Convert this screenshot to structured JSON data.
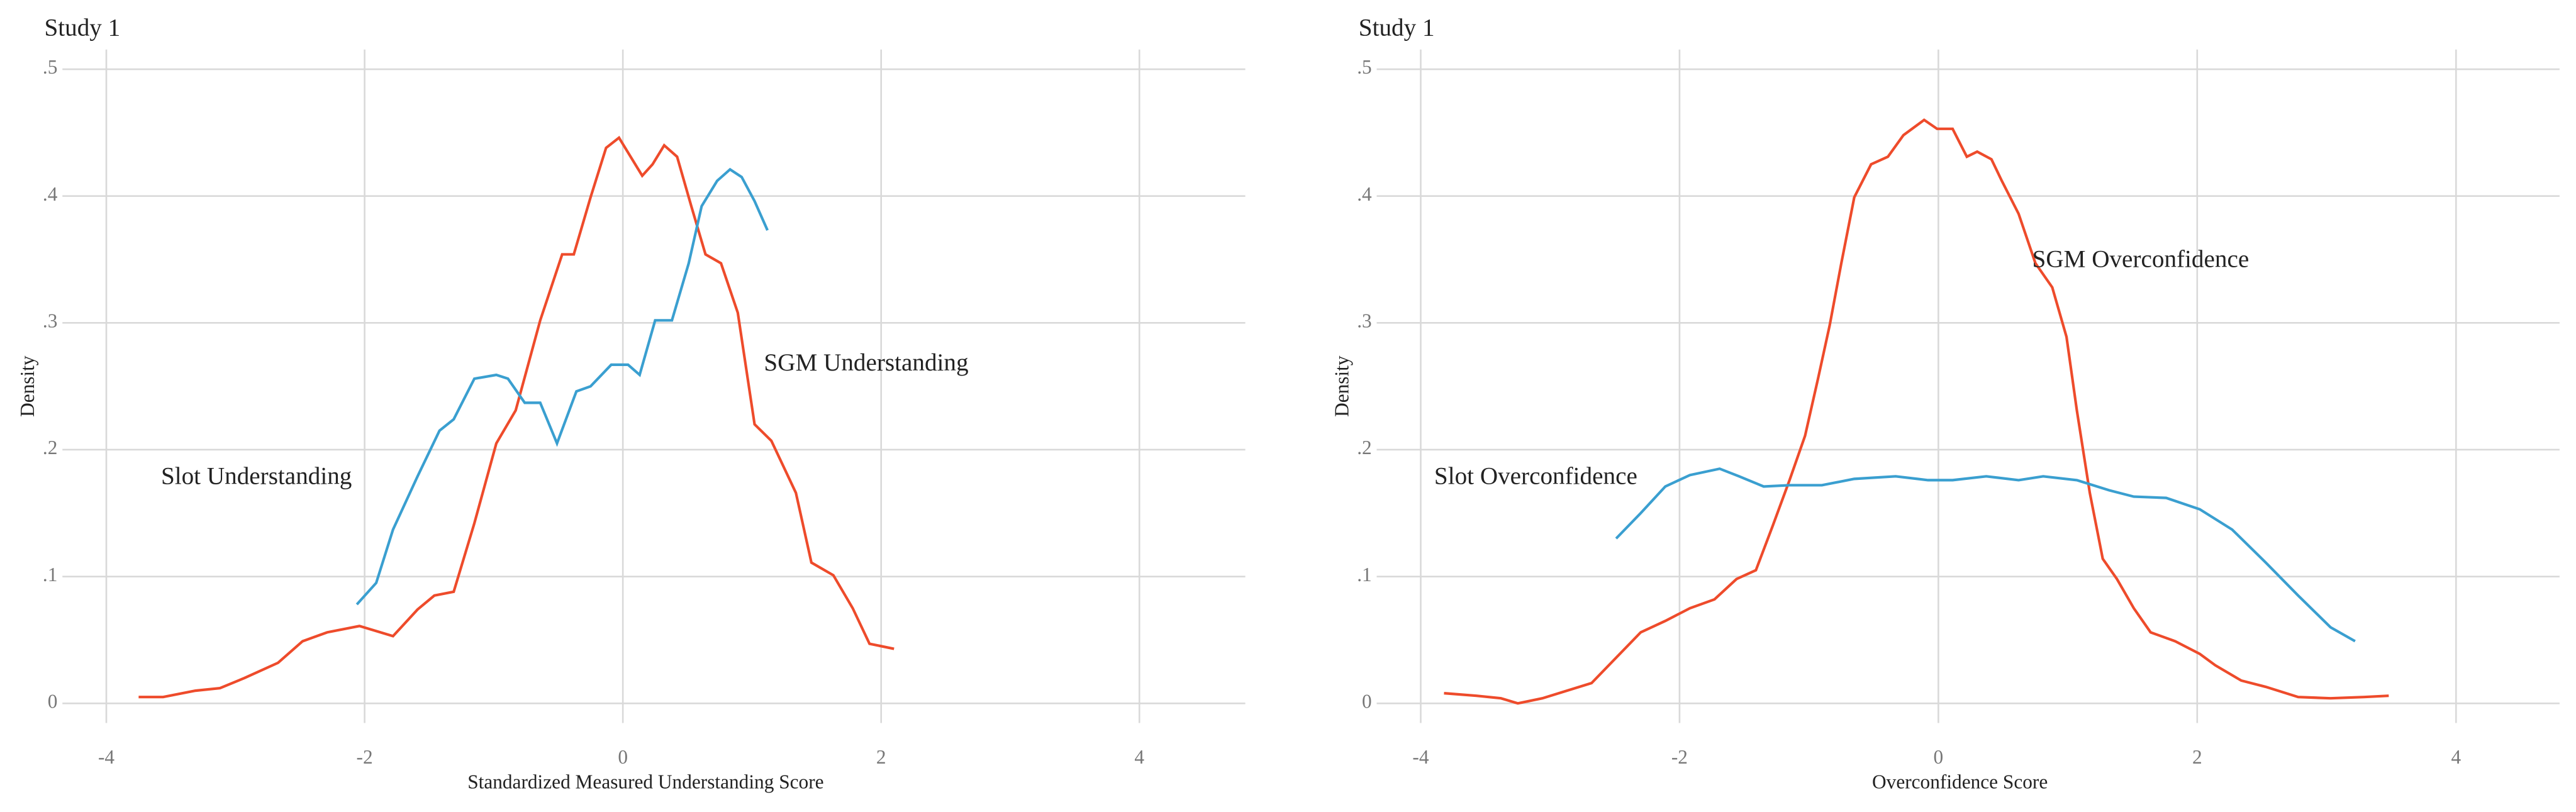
{
  "chart_data": [
    {
      "type": "line",
      "title": "Study 1",
      "x_label": "Standardized Measured Understanding Score",
      "y_label": "Density",
      "xlim": [
        -4.34,
        4.82
      ],
      "ylim": [
        -0.0155,
        0.5155
      ],
      "grid": true,
      "legend": false,
      "xticks": [
        -4,
        -2,
        0,
        2,
        4
      ],
      "yticks": [
        0,
        {
          "value": 0.1,
          "label": ".1"
        },
        {
          "value": 0.2,
          "label": ".2"
        },
        {
          "value": 0.3,
          "label": ".3"
        },
        {
          "value": 0.4,
          "label": ".4"
        },
        {
          "value": 0.5,
          "label": ".5"
        }
      ],
      "series": [
        {
          "name": "SGM Understanding",
          "color": "#ee4b2b",
          "x": [
            -3.75,
            -3.56,
            -3.31,
            -3.12,
            -2.93,
            -2.67,
            -2.48,
            -2.29,
            -2.04,
            -1.78,
            -1.59,
            -1.46,
            -1.31,
            -1.15,
            -0.98,
            -0.83,
            -0.64,
            -0.47,
            -0.38,
            -0.25,
            -0.13,
            -0.03,
            0.06,
            0.15,
            0.23,
            0.32,
            0.42,
            0.53,
            0.64,
            0.76,
            0.89,
            1.02,
            1.15,
            1.34,
            1.46,
            1.63,
            1.78,
            1.91,
            2.1
          ],
          "values": [
            0.005,
            0.005,
            0.01,
            0.012,
            0.02,
            0.032,
            0.049,
            0.056,
            0.061,
            0.053,
            0.074,
            0.085,
            0.088,
            0.142,
            0.205,
            0.231,
            0.302,
            0.354,
            0.354,
            0.399,
            0.438,
            0.446,
            0.431,
            0.416,
            0.425,
            0.44,
            0.431,
            0.392,
            0.354,
            0.347,
            0.308,
            0.22,
            0.207,
            0.166,
            0.111,
            0.101,
            0.075,
            0.047,
            0.043
          ]
        },
        {
          "name": "Slot Understanding",
          "color": "#3a9fd0",
          "x": [
            -2.06,
            -1.91,
            -1.78,
            -1.59,
            -1.42,
            -1.31,
            -1.15,
            -0.98,
            -0.89,
            -0.76,
            -0.64,
            -0.51,
            -0.36,
            -0.25,
            -0.09,
            0.04,
            0.13,
            0.25,
            0.38,
            0.51,
            0.61,
            0.73,
            0.83,
            0.92,
            1.02,
            1.12
          ],
          "values": [
            0.078,
            0.095,
            0.137,
            0.179,
            0.215,
            0.224,
            0.256,
            0.259,
            0.256,
            0.237,
            0.237,
            0.205,
            0.246,
            0.25,
            0.267,
            0.267,
            0.259,
            0.302,
            0.302,
            0.347,
            0.392,
            0.412,
            0.421,
            0.415,
            0.396,
            0.373
          ]
        }
      ]
    },
    {
      "type": "line",
      "title": "Study 1",
      "x_label": "Overconfidence Score",
      "y_label": "Density",
      "xlim": [
        -4.34,
        4.8
      ],
      "ylim": [
        -0.0155,
        0.5155
      ],
      "grid": true,
      "legend": false,
      "xticks": [
        -4,
        -2,
        0,
        2,
        4
      ],
      "yticks": [
        0,
        {
          "value": 0.1,
          "label": ".1"
        },
        {
          "value": 0.2,
          "label": ".2"
        },
        {
          "value": 0.3,
          "label": ".3"
        },
        {
          "value": 0.4,
          "label": ".4"
        },
        {
          "value": 0.5,
          "label": ".5"
        }
      ],
      "series": [
        {
          "name": "SGM Overconfidence",
          "color": "#ee4b2b",
          "x": [
            -3.82,
            -3.57,
            -3.38,
            -3.25,
            -3.06,
            -2.87,
            -2.68,
            -2.49,
            -2.3,
            -2.11,
            -1.92,
            -1.73,
            -1.56,
            -1.41,
            -1.28,
            -1.15,
            -1.03,
            -0.93,
            -0.84,
            -0.75,
            -0.65,
            -0.52,
            -0.39,
            -0.27,
            -0.11,
            -0.01,
            0.11,
            0.22,
            0.3,
            0.41,
            0.49,
            0.62,
            0.75,
            0.88,
            0.99,
            1.07,
            1.17,
            1.27,
            1.38,
            1.51,
            1.64,
            1.83,
            2.02,
            2.14,
            2.34,
            2.53,
            2.78,
            3.03,
            3.29,
            3.48
          ],
          "values": [
            0.008,
            0.006,
            0.004,
            0,
            0.004,
            0.01,
            0.016,
            0.036,
            0.056,
            0.065,
            0.075,
            0.082,
            0.098,
            0.105,
            0.14,
            0.176,
            0.211,
            0.256,
            0.298,
            0.347,
            0.399,
            0.425,
            0.431,
            0.448,
            0.46,
            0.453,
            0.453,
            0.431,
            0.435,
            0.429,
            0.412,
            0.386,
            0.347,
            0.328,
            0.289,
            0.231,
            0.166,
            0.114,
            0.098,
            0.075,
            0.056,
            0.049,
            0.039,
            0.03,
            0.018,
            0.013,
            0.005,
            0.004,
            0.005,
            0.006
          ]
        },
        {
          "name": "Slot Overconfidence",
          "color": "#3a9fd0",
          "x": [
            -2.49,
            -2.3,
            -2.11,
            -1.92,
            -1.69,
            -1.54,
            -1.35,
            -1.15,
            -0.9,
            -0.65,
            -0.33,
            -0.08,
            0.11,
            0.37,
            0.62,
            0.81,
            1.07,
            1.32,
            1.51,
            1.76,
            2.02,
            2.27,
            2.53,
            2.78,
            3.03,
            3.22
          ],
          "values": [
            0.13,
            0.15,
            0.171,
            0.18,
            0.185,
            0.179,
            0.171,
            0.172,
            0.172,
            0.177,
            0.179,
            0.176,
            0.176,
            0.179,
            0.176,
            0.179,
            0.176,
            0.168,
            0.163,
            0.162,
            0.153,
            0.137,
            0.111,
            0.085,
            0.06,
            0.049
          ]
        }
      ]
    }
  ]
}
